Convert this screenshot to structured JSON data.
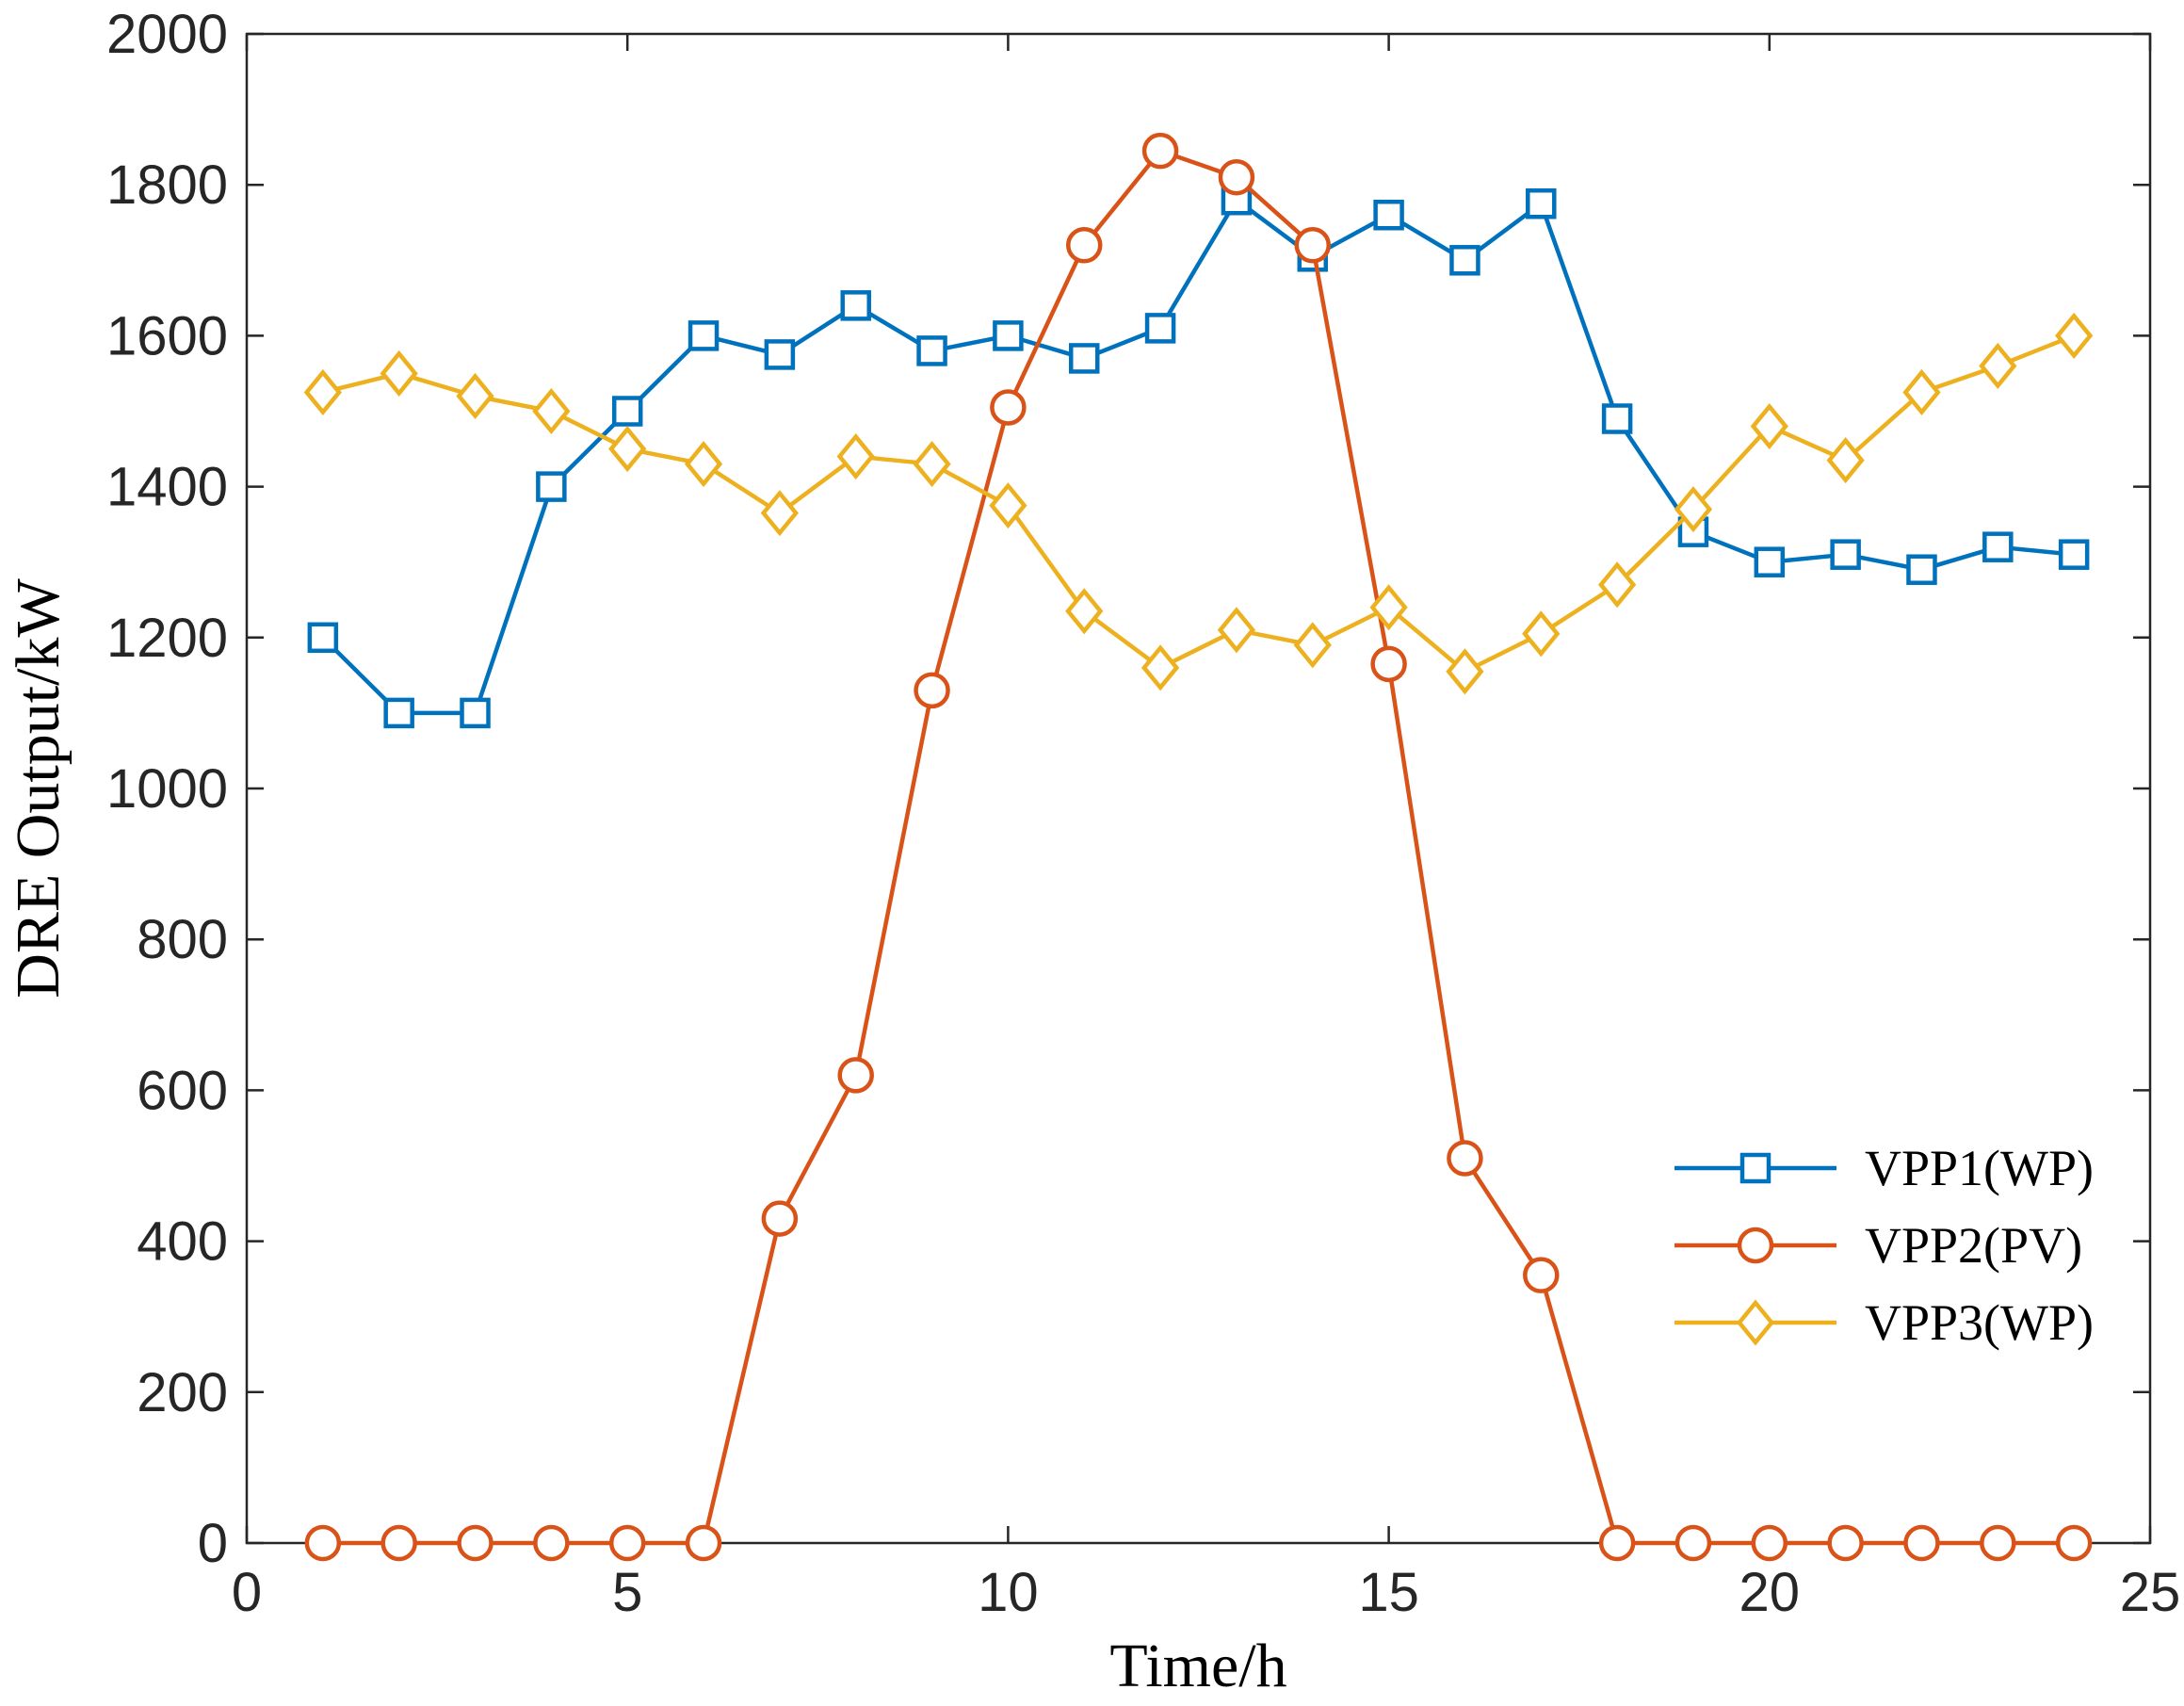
{
  "chart_data": {
    "type": "line",
    "xlabel": "Time/h",
    "ylabel": "DRE Output/kW",
    "xlim": [
      0,
      25
    ],
    "ylim": [
      0,
      2000
    ],
    "xticks": [
      0,
      5,
      10,
      15,
      20,
      25
    ],
    "yticks": [
      0,
      200,
      400,
      600,
      800,
      1000,
      1200,
      1400,
      1600,
      1800,
      2000
    ],
    "grid": false,
    "legend_position": "bottom-right",
    "x": [
      1,
      2,
      3,
      4,
      5,
      6,
      7,
      8,
      9,
      10,
      11,
      12,
      13,
      14,
      15,
      16,
      17,
      18,
      19,
      20,
      21,
      22,
      23,
      24
    ],
    "series": [
      {
        "name": "VPP1(WP)",
        "color": "#0072BD",
        "marker": "square",
        "values": [
          1200,
          1100,
          1100,
          1400,
          1500,
          1600,
          1575,
          1640,
          1580,
          1600,
          1570,
          1610,
          1780,
          1705,
          1760,
          1700,
          1775,
          1490,
          1340,
          1300,
          1310,
          1290,
          1320,
          1310
        ]
      },
      {
        "name": "VPP2(PV)",
        "color": "#D95319",
        "marker": "circle",
        "values": [
          0,
          0,
          0,
          0,
          0,
          0,
          430,
          620,
          1130,
          1505,
          1720,
          1845,
          1810,
          1720,
          1165,
          510,
          355,
          0,
          0,
          0,
          0,
          0,
          0,
          0
        ]
      },
      {
        "name": "VPP3(WP)",
        "color": "#EDB120",
        "marker": "diamond",
        "values": [
          1525,
          1550,
          1520,
          1500,
          1450,
          1430,
          1365,
          1440,
          1430,
          1375,
          1235,
          1160,
          1210,
          1190,
          1240,
          1155,
          1205,
          1270,
          1370,
          1480,
          1435,
          1525,
          1560,
          1600
        ]
      }
    ]
  }
}
